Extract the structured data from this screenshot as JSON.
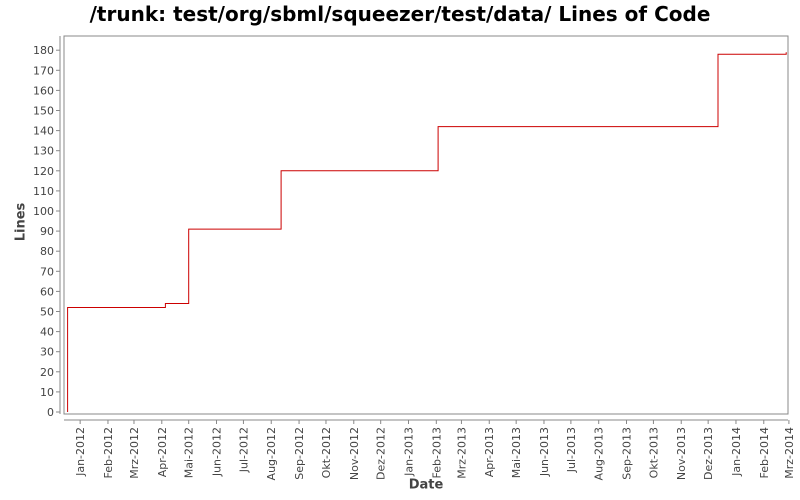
{
  "chart_data": {
    "type": "line",
    "title": "/trunk: test/org/sbml/squeezer/test/data/ Lines of Code",
    "xlabel": "Date",
    "ylabel": "Lines",
    "ylim": [
      0,
      185
    ],
    "yticks": [
      0,
      10,
      20,
      30,
      40,
      50,
      60,
      70,
      80,
      90,
      100,
      110,
      120,
      130,
      140,
      150,
      160,
      170,
      180
    ],
    "xlim": [
      "2011-12-14",
      "2014-02-28"
    ],
    "xtick_labels": [
      "Jan-2012",
      "Feb-2012",
      "Mrz-2012",
      "Apr-2012",
      "Mai-2012",
      "Jun-2012",
      "Jul-2012",
      "Aug-2012",
      "Sep-2012",
      "Okt-2012",
      "Nov-2012",
      "Dez-2012",
      "Jan-2013",
      "Feb-2013",
      "Mrz-2013",
      "Apr-2013",
      "Mai-2013",
      "Jun-2013",
      "Jul-2013",
      "Aug-2013",
      "Sep-2013",
      "Okt-2013",
      "Nov-2013",
      "Dez-2013",
      "Jan-2014",
      "Feb-2014",
      "Mrz-2014"
    ],
    "xtick_dates": [
      "2012-01-01",
      "2012-02-01",
      "2012-03-01",
      "2012-04-01",
      "2012-05-01",
      "2012-06-01",
      "2012-07-01",
      "2012-08-01",
      "2012-09-01",
      "2012-10-01",
      "2012-11-01",
      "2012-12-01",
      "2013-01-01",
      "2013-02-01",
      "2013-03-01",
      "2013-04-01",
      "2013-05-01",
      "2013-06-01",
      "2013-07-01",
      "2013-08-01",
      "2013-09-01",
      "2013-10-01",
      "2013-11-01",
      "2013-12-01",
      "2014-01-01",
      "2014-02-01",
      "2014-03-01"
    ],
    "grid": false,
    "series": [
      {
        "color": "#cc0000",
        "step": true,
        "points": [
          {
            "x": "2011-12-18",
            "y": 0
          },
          {
            "x": "2011-12-18",
            "y": 52
          },
          {
            "x": "2012-04-05",
            "y": 52
          },
          {
            "x": "2012-04-05",
            "y": 54
          },
          {
            "x": "2012-05-01",
            "y": 54
          },
          {
            "x": "2012-05-01",
            "y": 91
          },
          {
            "x": "2012-08-12",
            "y": 91
          },
          {
            "x": "2012-08-12",
            "y": 120
          },
          {
            "x": "2013-02-03",
            "y": 120
          },
          {
            "x": "2013-02-03",
            "y": 142
          },
          {
            "x": "2013-12-12",
            "y": 142
          },
          {
            "x": "2013-12-12",
            "y": 178
          },
          {
            "x": "2014-02-26",
            "y": 178
          },
          {
            "x": "2014-02-26",
            "y": 179
          }
        ]
      }
    ]
  }
}
